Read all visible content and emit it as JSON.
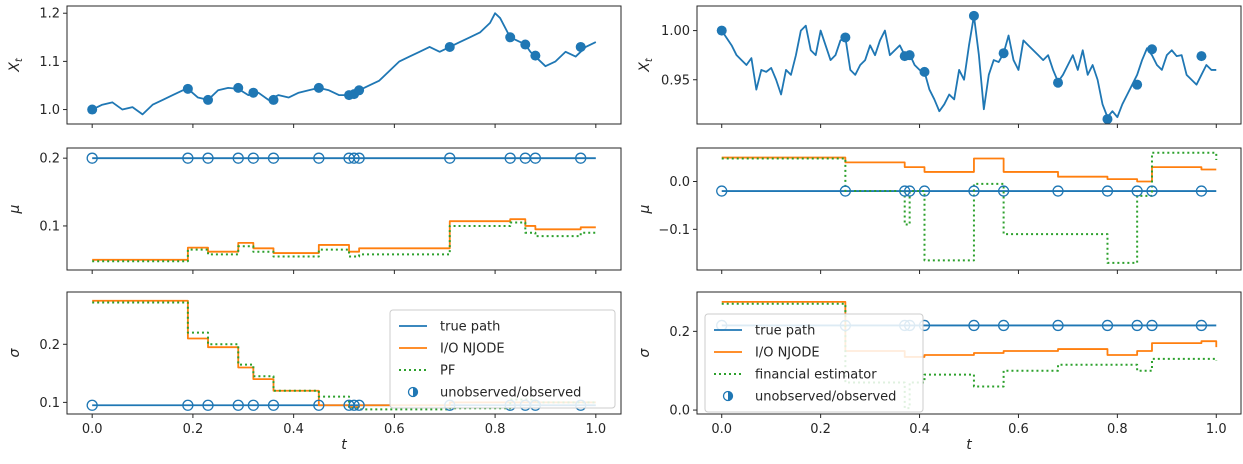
{
  "colors": {
    "true_path": "#1f77b4",
    "njode": "#ff7f0e",
    "estimator": "#2ca02c",
    "axes": "#262626"
  },
  "chart_data": [
    {
      "type": "line",
      "panel": "left-top",
      "ylabel": "X_t",
      "xlim": [
        -0.05,
        1.05
      ],
      "ylim": [
        0.97,
        1.215
      ],
      "yticks": [
        1.0,
        1.1,
        1.2
      ],
      "ytick_labels": [
        "1.0",
        "1.1",
        "1.2"
      ],
      "show_xticklabels": false,
      "series": [
        {
          "role": "path",
          "x": [
            0,
            0.02,
            0.04,
            0.06,
            0.08,
            0.1,
            0.12,
            0.14,
            0.16,
            0.18,
            0.19,
            0.21,
            0.23,
            0.25,
            0.27,
            0.29,
            0.31,
            0.33,
            0.35,
            0.37,
            0.39,
            0.41,
            0.43,
            0.45,
            0.47,
            0.49,
            0.51,
            0.53,
            0.55,
            0.57,
            0.59,
            0.61,
            0.63,
            0.65,
            0.67,
            0.69,
            0.71,
            0.73,
            0.75,
            0.77,
            0.79,
            0.8,
            0.81,
            0.83,
            0.85,
            0.86,
            0.87,
            0.88,
            0.9,
            0.92,
            0.94,
            0.96,
            0.98,
            1.0
          ],
          "y": [
            1.0,
            1.01,
            1.015,
            1.0,
            1.005,
            0.99,
            1.01,
            1.02,
            1.03,
            1.04,
            1.043,
            1.025,
            1.02,
            1.04,
            1.045,
            1.043,
            1.03,
            1.035,
            1.02,
            1.03,
            1.025,
            1.035,
            1.04,
            1.045,
            1.04,
            1.03,
            1.03,
            1.04,
            1.05,
            1.06,
            1.08,
            1.1,
            1.11,
            1.12,
            1.13,
            1.12,
            1.13,
            1.14,
            1.15,
            1.16,
            1.18,
            1.2,
            1.19,
            1.15,
            1.14,
            1.135,
            1.12,
            1.11,
            1.09,
            1.1,
            1.12,
            1.11,
            1.13,
            1.14
          ]
        },
        {
          "role": "observations",
          "x": [
            0.0,
            0.19,
            0.23,
            0.29,
            0.32,
            0.36,
            0.45,
            0.51,
            0.52,
            0.53,
            0.71,
            0.83,
            0.86,
            0.88,
            0.97
          ],
          "y": [
            1.0,
            1.043,
            1.02,
            1.045,
            1.035,
            1.02,
            1.045,
            1.03,
            1.032,
            1.04,
            1.13,
            1.15,
            1.135,
            1.112,
            1.13
          ]
        }
      ]
    },
    {
      "type": "step",
      "panel": "left-middle",
      "ylabel": "μ",
      "xlim": [
        -0.05,
        1.05
      ],
      "ylim": [
        0.035,
        0.215
      ],
      "yticks": [
        0.1,
        0.2
      ],
      "ytick_labels": [
        "0.1",
        "0.2"
      ],
      "show_xticklabels": false,
      "series": [
        {
          "role": "true",
          "x": [
            0,
            1
          ],
          "y": [
            0.2,
            0.2
          ]
        },
        {
          "role": "njode",
          "x": [
            0,
            0.19,
            0.23,
            0.29,
            0.32,
            0.36,
            0.45,
            0.51,
            0.53,
            0.71,
            0.83,
            0.86,
            0.88,
            0.97,
            1.0
          ],
          "y": [
            0.05,
            0.068,
            0.062,
            0.075,
            0.067,
            0.06,
            0.072,
            0.062,
            0.067,
            0.107,
            0.11,
            0.1,
            0.095,
            0.098,
            0.098
          ]
        },
        {
          "role": "estimator",
          "x": [
            0,
            0.19,
            0.23,
            0.29,
            0.32,
            0.36,
            0.45,
            0.51,
            0.53,
            0.71,
            0.83,
            0.86,
            0.88,
            0.97,
            1.0
          ],
          "y": [
            0.048,
            0.065,
            0.058,
            0.07,
            0.062,
            0.055,
            0.065,
            0.055,
            0.058,
            0.1,
            0.105,
            0.09,
            0.085,
            0.09,
            0.09
          ]
        },
        {
          "role": "observations",
          "x": [
            0.0,
            0.19,
            0.23,
            0.29,
            0.32,
            0.36,
            0.45,
            0.51,
            0.52,
            0.53,
            0.71,
            0.83,
            0.86,
            0.88,
            0.97
          ],
          "y_const": 0.2
        }
      ]
    },
    {
      "type": "step",
      "panel": "left-bottom",
      "ylabel": "σ",
      "xlabel": "t",
      "xlim": [
        -0.05,
        1.05
      ],
      "ylim": [
        0.08,
        0.29
      ],
      "yticks": [
        0.1,
        0.2
      ],
      "ytick_labels": [
        "0.1",
        "0.2"
      ],
      "xticks": [
        0.0,
        0.2,
        0.4,
        0.6,
        0.8,
        1.0
      ],
      "xtick_labels": [
        "0.0",
        "0.2",
        "0.4",
        "0.6",
        "0.8",
        "1.0"
      ],
      "show_xticklabels": true,
      "series": [
        {
          "role": "true",
          "name": "true path",
          "x": [
            0,
            1
          ],
          "y": [
            0.095,
            0.095
          ]
        },
        {
          "role": "njode",
          "name": "I/O NJODE",
          "x": [
            0,
            0.19,
            0.23,
            0.29,
            0.32,
            0.36,
            0.45,
            0.51,
            0.53,
            0.71,
            0.83,
            0.86,
            0.88,
            0.97,
            1.0
          ],
          "y": [
            0.275,
            0.21,
            0.195,
            0.16,
            0.14,
            0.12,
            0.095,
            0.092,
            0.095,
            0.1,
            0.1,
            0.1,
            0.1,
            0.1,
            0.1
          ]
        },
        {
          "role": "estimator",
          "name": "PF",
          "x": [
            0,
            0.19,
            0.23,
            0.29,
            0.32,
            0.36,
            0.45,
            0.51,
            0.53,
            0.71,
            0.83,
            0.86,
            0.88,
            0.97,
            1.0
          ],
          "y": [
            0.272,
            0.22,
            0.2,
            0.165,
            0.145,
            0.12,
            0.11,
            0.09,
            0.088,
            0.09,
            0.105,
            0.105,
            0.1,
            0.1,
            0.1
          ]
        },
        {
          "role": "observations",
          "x": [
            0.0,
            0.19,
            0.23,
            0.29,
            0.32,
            0.36,
            0.45,
            0.51,
            0.52,
            0.53,
            0.71,
            0.83,
            0.86,
            0.88,
            0.97
          ],
          "y_const": 0.095
        }
      ],
      "legend": {
        "placement": "lower-right",
        "entries": [
          "true path",
          "I/O NJODE",
          "PF",
          "unobserved/observed"
        ]
      }
    },
    {
      "type": "line",
      "panel": "right-top",
      "ylabel": "X_t",
      "xlim": [
        -0.05,
        1.05
      ],
      "ylim": [
        0.905,
        1.025
      ],
      "yticks": [
        0.95,
        1.0
      ],
      "ytick_labels": [
        "0.95",
        "1.00"
      ],
      "show_xticklabels": false,
      "series": [
        {
          "role": "path",
          "x": [
            0,
            0.02,
            0.03,
            0.04,
            0.05,
            0.06,
            0.07,
            0.08,
            0.09,
            0.1,
            0.11,
            0.12,
            0.13,
            0.14,
            0.15,
            0.16,
            0.17,
            0.18,
            0.19,
            0.2,
            0.21,
            0.22,
            0.23,
            0.24,
            0.25,
            0.26,
            0.27,
            0.28,
            0.29,
            0.3,
            0.31,
            0.32,
            0.33,
            0.34,
            0.35,
            0.36,
            0.37,
            0.38,
            0.39,
            0.4,
            0.41,
            0.42,
            0.43,
            0.44,
            0.45,
            0.46,
            0.47,
            0.48,
            0.49,
            0.5,
            0.51,
            0.52,
            0.53,
            0.54,
            0.55,
            0.56,
            0.57,
            0.58,
            0.59,
            0.6,
            0.61,
            0.62,
            0.63,
            0.64,
            0.65,
            0.66,
            0.67,
            0.68,
            0.69,
            0.7,
            0.71,
            0.72,
            0.73,
            0.74,
            0.75,
            0.76,
            0.77,
            0.78,
            0.79,
            0.8,
            0.81,
            0.82,
            0.83,
            0.84,
            0.85,
            0.86,
            0.87,
            0.88,
            0.89,
            0.9,
            0.91,
            0.92,
            0.93,
            0.94,
            0.95,
            0.96,
            0.97,
            0.98,
            0.99,
            1.0
          ],
          "y": [
            1.0,
            0.985,
            0.975,
            0.97,
            0.965,
            0.972,
            0.94,
            0.96,
            0.958,
            0.962,
            0.95,
            0.935,
            0.96,
            0.955,
            0.975,
            1.0,
            1.005,
            0.98,
            0.975,
            1.0,
            0.985,
            0.97,
            0.975,
            0.99,
            0.993,
            0.96,
            0.955,
            0.965,
            0.97,
            0.985,
            0.975,
            0.99,
            1.0,
            0.975,
            0.98,
            0.985,
            0.975,
            0.976,
            0.965,
            0.96,
            0.958,
            0.94,
            0.93,
            0.918,
            0.925,
            0.935,
            0.93,
            0.96,
            0.95,
            0.985,
            1.015,
            0.975,
            0.92,
            0.955,
            0.97,
            0.968,
            0.977,
            0.995,
            0.97,
            0.96,
            0.99,
            0.985,
            0.98,
            0.975,
            0.97,
            0.975,
            0.96,
            0.948,
            0.955,
            0.965,
            0.975,
            0.96,
            0.98,
            0.955,
            0.965,
            0.95,
            0.925,
            0.912,
            0.918,
            0.912,
            0.925,
            0.935,
            0.945,
            0.955,
            0.97,
            0.982,
            0.975,
            0.965,
            0.96,
            0.975,
            0.98,
            0.974,
            0.975,
            0.955,
            0.95,
            0.945,
            0.955,
            0.965,
            0.96,
            0.96
          ]
        },
        {
          "role": "observations",
          "x": [
            0.0,
            0.25,
            0.37,
            0.38,
            0.41,
            0.51,
            0.57,
            0.68,
            0.78,
            0.84,
            0.87,
            0.97
          ],
          "y": [
            1.0,
            0.993,
            0.974,
            0.975,
            0.958,
            1.015,
            0.977,
            0.947,
            0.91,
            0.945,
            0.981,
            0.974
          ]
        }
      ]
    },
    {
      "type": "step",
      "panel": "right-middle",
      "ylabel": "μ",
      "xlim": [
        -0.05,
        1.05
      ],
      "ylim": [
        -0.185,
        0.07
      ],
      "yticks": [
        -0.1,
        0.0
      ],
      "ytick_labels": [
        "−0.1",
        "0.0"
      ],
      "show_xticklabels": false,
      "series": [
        {
          "role": "true",
          "x": [
            0,
            1
          ],
          "y": [
            -0.02,
            -0.02
          ]
        },
        {
          "role": "njode",
          "x": [
            0,
            0.25,
            0.37,
            0.38,
            0.41,
            0.51,
            0.57,
            0.68,
            0.78,
            0.84,
            0.87,
            0.97,
            1.0
          ],
          "y": [
            0.05,
            0.04,
            0.03,
            0.03,
            0.02,
            0.048,
            0.02,
            0.01,
            0.005,
            0.0,
            0.03,
            0.025,
            0.025
          ]
        },
        {
          "role": "estimator",
          "x": [
            0,
            0.25,
            0.37,
            0.38,
            0.41,
            0.51,
            0.57,
            0.68,
            0.78,
            0.84,
            0.87,
            0.97,
            1.0
          ],
          "y": [
            0.048,
            -0.02,
            -0.09,
            -0.02,
            -0.165,
            -0.005,
            -0.11,
            -0.11,
            -0.17,
            -0.03,
            0.06,
            0.06,
            0.045
          ]
        },
        {
          "role": "observations",
          "x": [
            0.0,
            0.25,
            0.37,
            0.38,
            0.41,
            0.51,
            0.57,
            0.68,
            0.78,
            0.84,
            0.87,
            0.97
          ],
          "y_const": -0.02
        }
      ]
    },
    {
      "type": "step",
      "panel": "right-bottom",
      "ylabel": "σ",
      "xlabel": "t",
      "xlim": [
        -0.05,
        1.05
      ],
      "ylim": [
        -0.01,
        0.3
      ],
      "yticks": [
        0.0,
        0.2
      ],
      "ytick_labels": [
        "0.0",
        "0.2"
      ],
      "xticks": [
        0.0,
        0.2,
        0.4,
        0.6,
        0.8,
        1.0
      ],
      "xtick_labels": [
        "0.0",
        "0.2",
        "0.4",
        "0.6",
        "0.8",
        "1.0"
      ],
      "show_xticklabels": true,
      "series": [
        {
          "role": "true",
          "name": "true path",
          "x": [
            0,
            1
          ],
          "y": [
            0.215,
            0.215
          ]
        },
        {
          "role": "njode",
          "name": "I/O NJODE",
          "x": [
            0,
            0.25,
            0.37,
            0.38,
            0.41,
            0.51,
            0.57,
            0.68,
            0.78,
            0.84,
            0.87,
            0.97,
            1.0
          ],
          "y": [
            0.275,
            0.15,
            0.135,
            0.135,
            0.14,
            0.145,
            0.15,
            0.155,
            0.14,
            0.15,
            0.17,
            0.175,
            0.16
          ]
        },
        {
          "role": "estimator",
          "name": "financial estimator",
          "x": [
            0,
            0.25,
            0.37,
            0.38,
            0.41,
            0.51,
            0.57,
            0.68,
            0.78,
            0.84,
            0.87,
            0.97,
            1.0
          ],
          "y": [
            0.27,
            0.07,
            0.005,
            0.07,
            0.09,
            0.06,
            0.1,
            0.115,
            0.115,
            0.1,
            0.13,
            0.13,
            0.125
          ]
        },
        {
          "role": "observations",
          "x": [
            0.0,
            0.25,
            0.37,
            0.38,
            0.41,
            0.51,
            0.57,
            0.68,
            0.78,
            0.84,
            0.87,
            0.97
          ],
          "y_const": 0.215
        }
      ],
      "legend": {
        "placement": "top-left",
        "entries": [
          "true path",
          "I/O NJODE",
          "financial estimator",
          "unobserved/observed"
        ]
      }
    }
  ]
}
